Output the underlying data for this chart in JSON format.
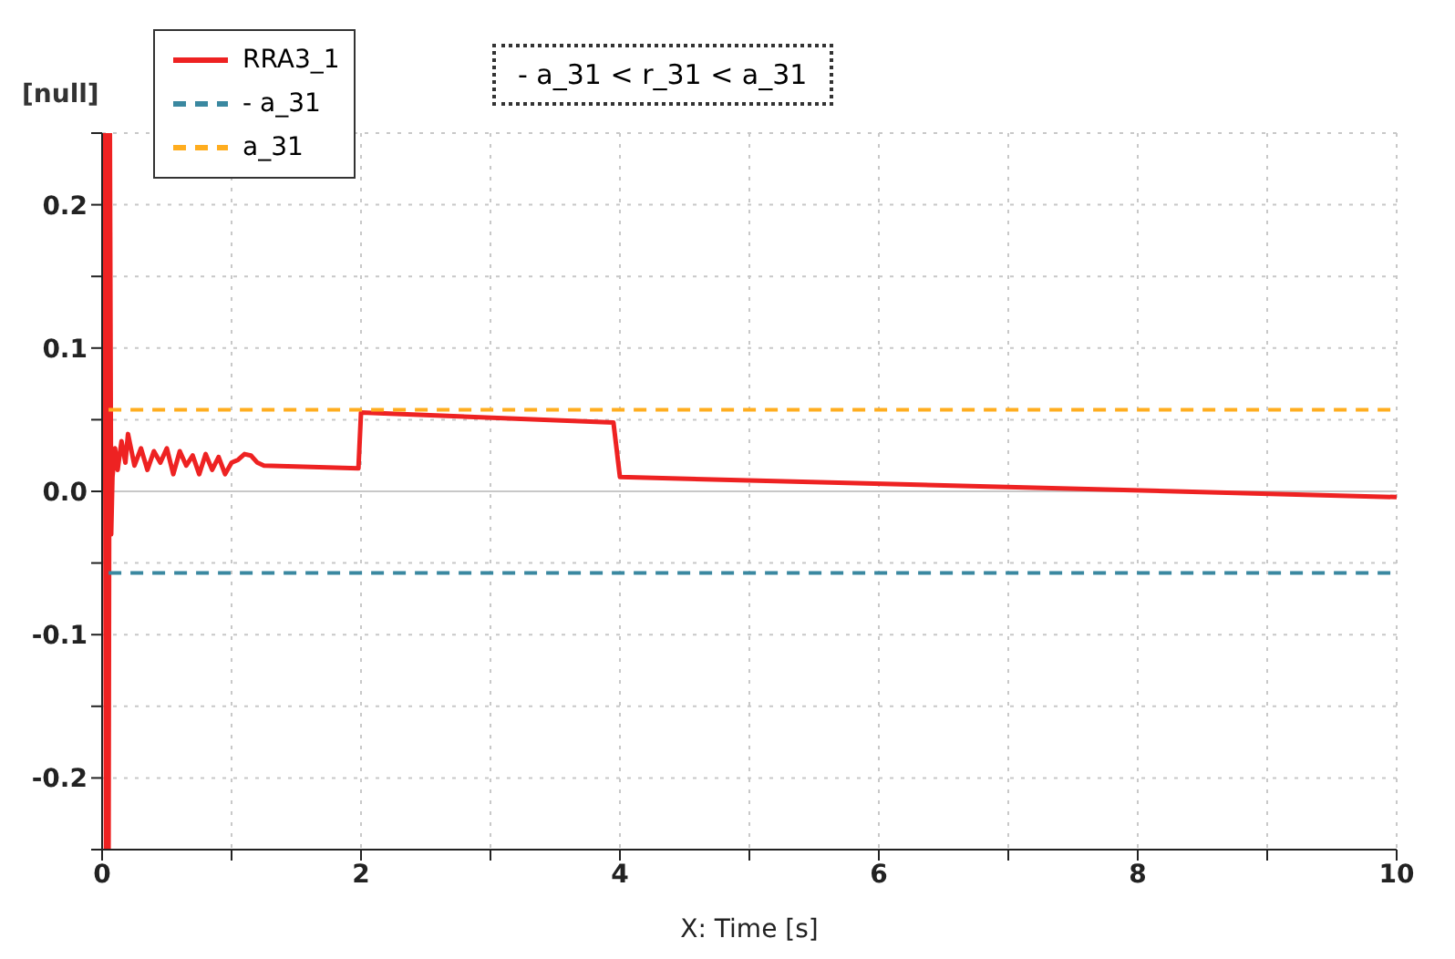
{
  "chart_data": {
    "type": "line",
    "ylabel": "[null]",
    "xlabel": "X: Time [s]",
    "annotations": [
      "- a_31 < r_31 < a_31"
    ],
    "xlim": [
      0,
      10
    ],
    "xticks": [
      0,
      {
        "value": 1,
        "label": null
      },
      2,
      {
        "value": 3,
        "label": null
      },
      4,
      {
        "value": 5,
        "label": null
      },
      6,
      {
        "value": 7,
        "label": null
      },
      8,
      {
        "value": 9,
        "label": null
      },
      10
    ],
    "ylim": [
      -0.25,
      0.25
    ],
    "yticks": [
      {
        "value": -0.25,
        "label": null
      },
      -0.2,
      {
        "value": -0.15,
        "label": null
      },
      -0.1,
      {
        "value": -0.05,
        "label": null
      },
      {
        "value": 0,
        "label": "0.0"
      },
      {
        "value": 0.05,
        "label": null
      },
      0.1,
      {
        "value": 0.15,
        "label": null
      },
      0.2,
      {
        "value": 0.25,
        "label": null
      }
    ],
    "grid": true,
    "legend": "top left",
    "marker": "none",
    "ref_lines": [
      {
        "axis": "y",
        "value": 0,
        "color": "#c8c8c8",
        "line_style": "solid"
      }
    ],
    "series": [
      {
        "name": "RRA3_1",
        "color": "#ee2222",
        "line_style": "solid",
        "x": [
          0,
          0.02,
          0.03,
          0.04,
          0.05,
          0.06,
          0.07,
          0.08,
          0.1,
          0.12,
          0.15,
          0.18,
          0.2,
          0.25,
          0.3,
          0.35,
          0.4,
          0.45,
          0.5,
          0.55,
          0.6,
          0.65,
          0.7,
          0.75,
          0.8,
          0.85,
          0.9,
          0.95,
          1.0,
          1.05,
          1.1,
          1.15,
          1.2,
          1.25,
          1.98,
          2.0,
          3.95,
          4.0,
          10
        ],
        "values": [
          0,
          0.25,
          -0.25,
          0.25,
          -0.25,
          0.25,
          -0.03,
          0.01,
          0.03,
          0.015,
          0.035,
          0.02,
          0.04,
          0.018,
          0.03,
          0.015,
          0.028,
          0.02,
          0.03,
          0.012,
          0.028,
          0.018,
          0.025,
          0.012,
          0.026,
          0.015,
          0.024,
          0.012,
          0.02,
          0.022,
          0.026,
          0.025,
          0.02,
          0.018,
          0.016,
          0.055,
          0.048,
          0.01,
          -0.004
        ]
      },
      {
        "name": "- a_31",
        "color": "#3a88a0",
        "line_style": "dashed",
        "x": [
          0.05,
          10
        ],
        "values": [
          -0.057,
          -0.057
        ]
      },
      {
        "name": "a_31",
        "color": "#ffad1f",
        "line_style": "dashed",
        "x": [
          0.05,
          10
        ],
        "values": [
          0.057,
          0.057
        ]
      }
    ]
  }
}
